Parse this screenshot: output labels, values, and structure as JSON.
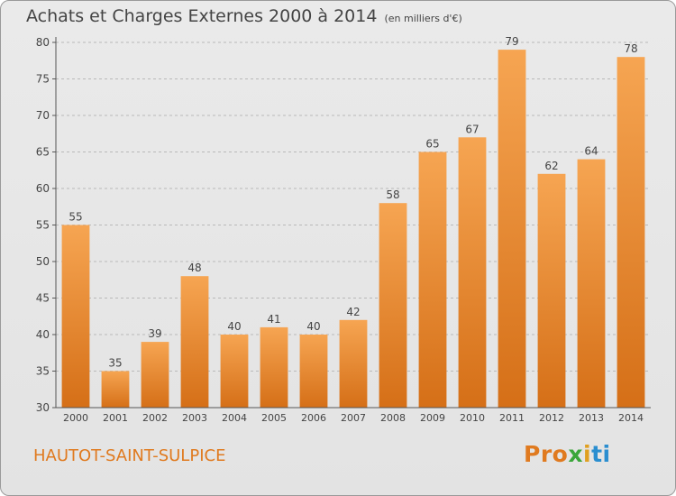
{
  "header": {
    "title": "Achats et Charges Externes 2000 à 2014",
    "subtitle": "(en milliers d'€)"
  },
  "footer": {
    "commune": "HAUTOT-SAINT-SULPICE",
    "logo": {
      "p": "Pr",
      "o": "o",
      "x": "x",
      "i": "i",
      "t": "ti"
    }
  },
  "colors": {
    "bar_light": "#f6a552",
    "bar_dark": "#d56f17",
    "text": "#444444",
    "accent": "#e07a1f"
  },
  "chart_data": {
    "type": "bar",
    "title": "Achats et Charges Externes 2000 à 2014",
    "subtitle": "(en milliers d'€)",
    "categories": [
      "2000",
      "2001",
      "2002",
      "2003",
      "2004",
      "2005",
      "2006",
      "2007",
      "2008",
      "2009",
      "2010",
      "2011",
      "2012",
      "2013",
      "2014"
    ],
    "values": [
      55,
      35,
      39,
      48,
      40,
      41,
      40,
      42,
      58,
      65,
      67,
      79,
      62,
      64,
      78
    ],
    "ylim": [
      30,
      80
    ],
    "yticks": [
      30,
      35,
      40,
      45,
      50,
      55,
      60,
      65,
      70,
      75,
      80
    ],
    "grid": true,
    "xlabel": "",
    "ylabel": ""
  }
}
